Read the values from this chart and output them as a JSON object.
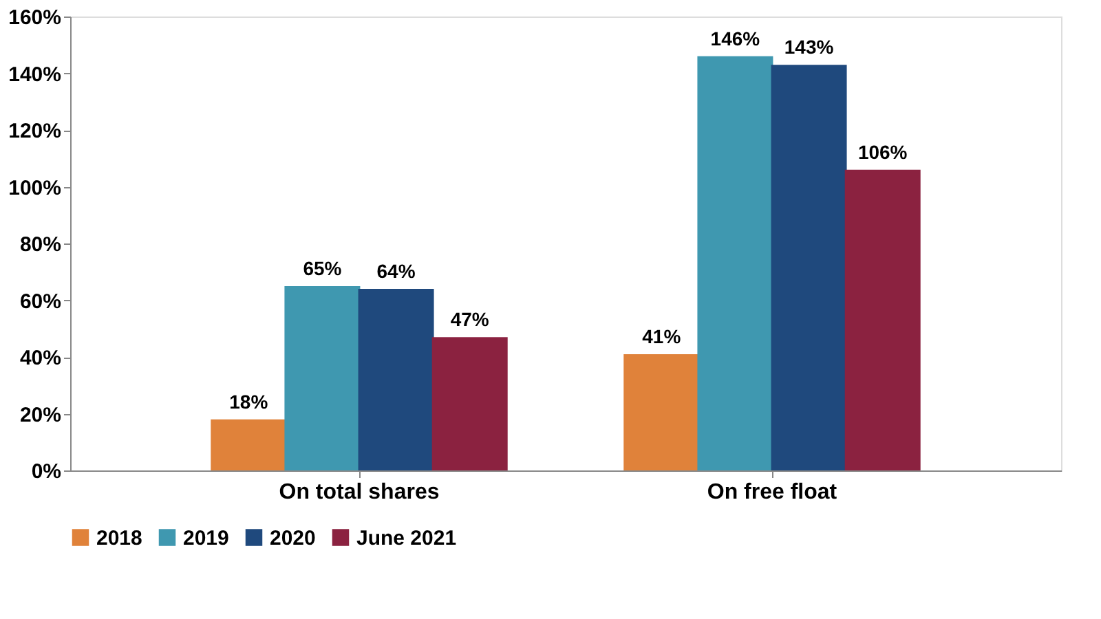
{
  "chart_data": {
    "type": "bar",
    "categories": [
      "On total shares",
      "On free float"
    ],
    "series": [
      {
        "name": "2018",
        "color": "#e0823a",
        "values": [
          18,
          41
        ],
        "value_labels": [
          "18%",
          "41%"
        ]
      },
      {
        "name": "2019",
        "color": "#3f98b0",
        "values": [
          65,
          146
        ],
        "value_labels": [
          "65%",
          "146%"
        ]
      },
      {
        "name": "2020",
        "color": "#1f497d",
        "values": [
          64,
          143
        ],
        "value_labels": [
          "64%",
          "143%"
        ]
      },
      {
        "name": "June 2021",
        "color": "#8b2240",
        "values": [
          47,
          106
        ],
        "value_labels": [
          "47%",
          "106%"
        ]
      }
    ],
    "ylim": [
      0,
      160
    ],
    "yticks": [
      {
        "value": 0,
        "label": "0%"
      },
      {
        "value": 20,
        "label": "20%"
      },
      {
        "value": 40,
        "label": "40%"
      },
      {
        "value": 60,
        "label": "60%"
      },
      {
        "value": 80,
        "label": "80%"
      },
      {
        "value": 100,
        "label": "100%"
      },
      {
        "value": 120,
        "label": "120%"
      },
      {
        "value": 140,
        "label": "140%"
      },
      {
        "value": 160,
        "label": "160%"
      }
    ],
    "grid": false,
    "legend": "bottom"
  }
}
